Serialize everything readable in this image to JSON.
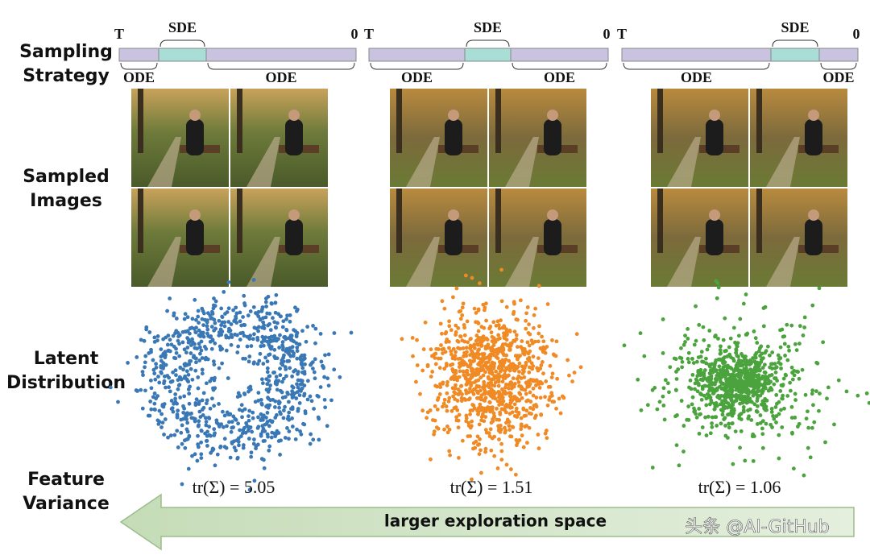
{
  "row_labels": [
    [
      "Sampling",
      "Strategy"
    ],
    [
      "Sampled",
      "Images"
    ],
    [
      "Latent",
      "Distribution"
    ],
    [
      "Feature",
      "Variance"
    ]
  ],
  "columns": [
    {
      "start": "T",
      "end": "0",
      "segments": [
        {
          "label": "ODE"
        },
        {
          "label": "SDE"
        },
        {
          "label": "ODE"
        }
      ],
      "point_color": "#3a78b5",
      "variance": "tr(Σ) = 5.05"
    },
    {
      "start": "T",
      "end": "0",
      "segments": [
        {
          "label": "ODE"
        },
        {
          "label": "SDE"
        },
        {
          "label": "ODE"
        }
      ],
      "point_color": "#f08a24",
      "variance": "tr(Σ) = 1.51"
    },
    {
      "start": "T",
      "end": "0",
      "segments": [
        {
          "label": "ODE"
        },
        {
          "label": "SDE"
        },
        {
          "label": "ODE"
        }
      ],
      "point_color": "#4aa33c",
      "variance": "tr(Σ) = 1.06"
    }
  ],
  "arrow_label": "larger exploration space",
  "watermark": "头条 @AI-GitHub"
}
